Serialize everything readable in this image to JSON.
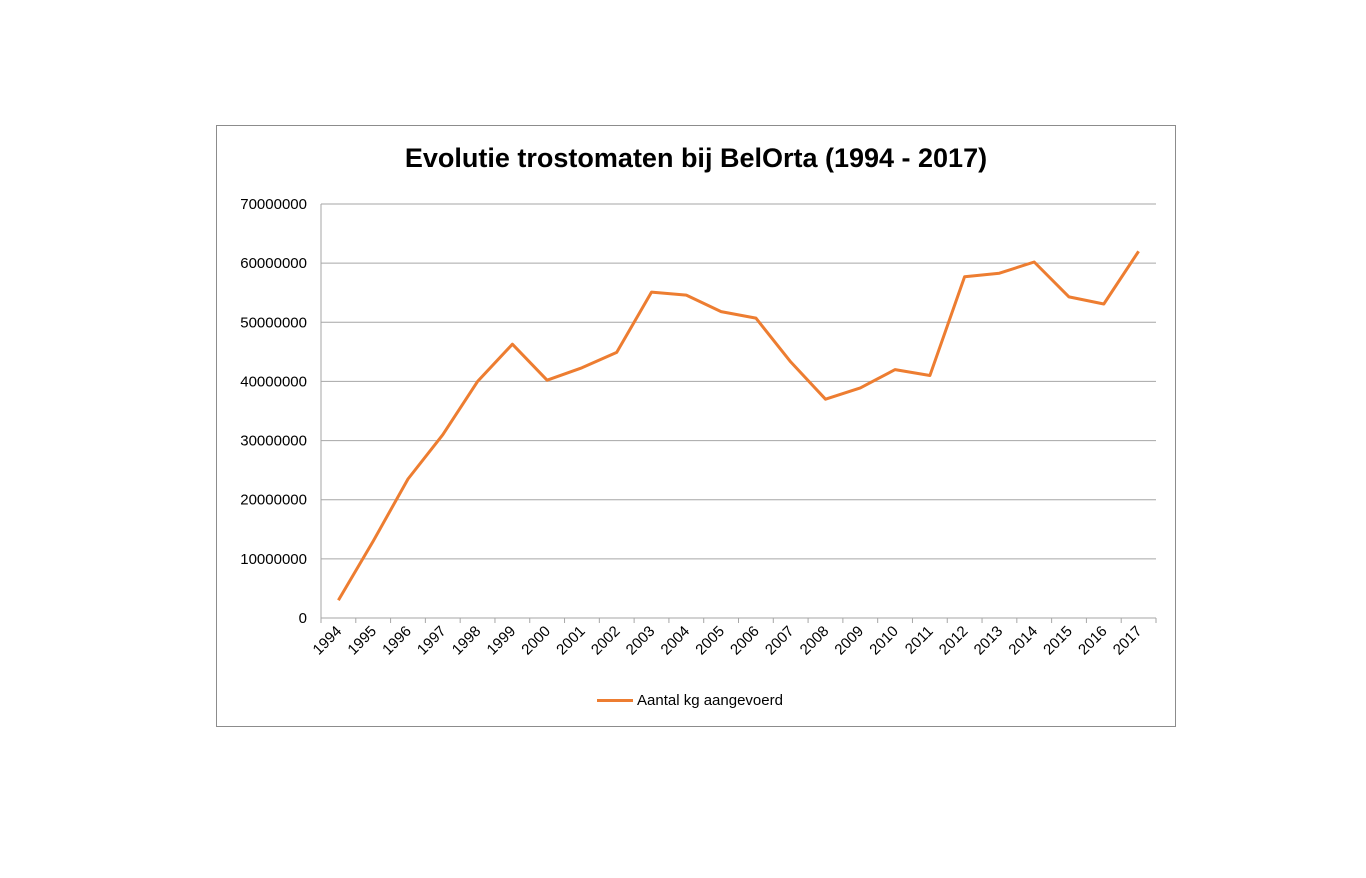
{
  "chart_data": {
    "type": "line",
    "title": "Evolutie trostomaten bij BelOrta (1994 - 2017)",
    "xlabel": "",
    "ylabel": "",
    "ylim": [
      0,
      70000000
    ],
    "yticks": [
      "0",
      "10000000",
      "20000000",
      "30000000",
      "40000000",
      "50000000",
      "60000000",
      "70000000"
    ],
    "grid": true,
    "legend_position": "bottom",
    "categories": [
      "1994",
      "1995",
      "1996",
      "1997",
      "1998",
      "1999",
      "2000",
      "2001",
      "2002",
      "2003",
      "2004",
      "2005",
      "2006",
      "2007",
      "2008",
      "2009",
      "2010",
      "2011",
      "2012",
      "2013",
      "2014",
      "2015",
      "2016",
      "2017"
    ],
    "series": [
      {
        "name": "Aantal kg aangevoerd",
        "color": "#ED7D31",
        "values": [
          3000000,
          13000000,
          23500000,
          31000000,
          40000000,
          46300000,
          40200000,
          42300000,
          44900000,
          55100000,
          54600000,
          51800000,
          50700000,
          43300000,
          37000000,
          38900000,
          42000000,
          41000000,
          57700000,
          58300000,
          60200000,
          54300000,
          53100000,
          62000000
        ]
      }
    ]
  }
}
